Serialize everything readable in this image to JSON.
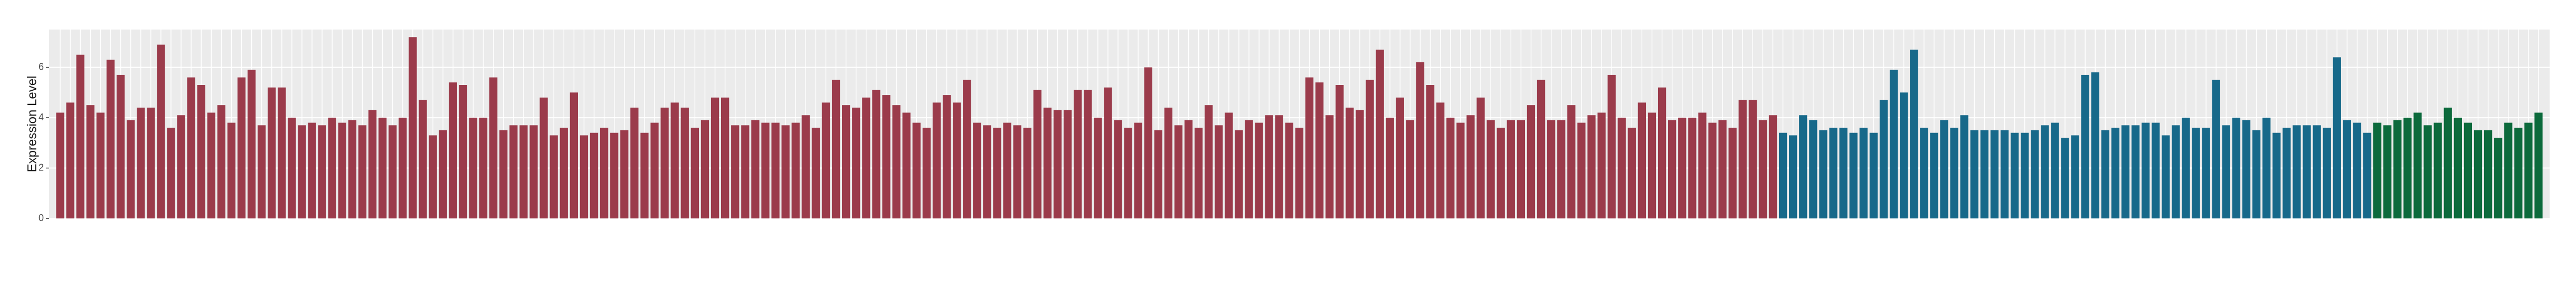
{
  "chart_data": {
    "type": "bar",
    "ylabel": "Expression Level",
    "ylim": [
      0,
      7.5
    ],
    "yticks": [
      0,
      2,
      4,
      6
    ],
    "grid": true,
    "series": [
      {
        "color": "#9b3b4b",
        "values": [
          4.2,
          4.6,
          6.5,
          4.5,
          4.2,
          6.3,
          5.7,
          3.9,
          4.4,
          4.4,
          6.9,
          3.6,
          4.1,
          5.6,
          5.3,
          4.2,
          4.5,
          3.8,
          5.6,
          5.9,
          3.7,
          5.2,
          5.2,
          4.0,
          3.7,
          3.8,
          3.7,
          4.0,
          3.8,
          3.9,
          3.7,
          4.3,
          4.0,
          3.7,
          4.0,
          7.2,
          4.7,
          3.3,
          3.5,
          5.4,
          5.3,
          4.0,
          4.0,
          5.6,
          3.5,
          3.7,
          3.7,
          3.7,
          4.8,
          3.3,
          3.6,
          5.0,
          3.3,
          3.4,
          3.6,
          3.4,
          3.5,
          4.4,
          3.4,
          3.8,
          4.4,
          4.6,
          4.4,
          3.6,
          3.9,
          4.8,
          4.8,
          3.7,
          3.7,
          3.9,
          3.8,
          3.8,
          3.7,
          3.8,
          4.1,
          3.6,
          4.6,
          5.5,
          4.5,
          4.4,
          4.8,
          5.1,
          4.9,
          4.5,
          4.2,
          3.8,
          3.6,
          4.6,
          4.9,
          4.6,
          5.5,
          3.8,
          3.7,
          3.6,
          3.8,
          3.7,
          3.6,
          5.1,
          4.4,
          4.3,
          4.3,
          5.1,
          5.1,
          4.0,
          5.2,
          3.9,
          3.6,
          3.8,
          6.0,
          3.5,
          4.4,
          3.7,
          3.9,
          3.6,
          4.5,
          3.7,
          4.2,
          3.5,
          3.9,
          3.8,
          4.1,
          4.1,
          3.8,
          3.6,
          5.6,
          5.4,
          4.1,
          5.3,
          4.4,
          4.3,
          5.5,
          6.7,
          4.0,
          4.8,
          3.9,
          6.2,
          5.3,
          4.6,
          4.0,
          3.8,
          4.1,
          4.8,
          3.9,
          3.6,
          3.9,
          3.9,
          4.5,
          5.5,
          3.9,
          3.9,
          4.5,
          3.8,
          4.1,
          4.2,
          5.7,
          4.0,
          3.6,
          4.6,
          4.2,
          5.2,
          3.9,
          4.0,
          4.0,
          4.2,
          3.8,
          3.9,
          3.6,
          4.7,
          4.7,
          3.9,
          4.1
        ]
      },
      {
        "color": "#17698a",
        "values": [
          3.4,
          3.3,
          4.1,
          3.9,
          3.5,
          3.6,
          3.6,
          3.4,
          3.6,
          3.4,
          4.7,
          5.9,
          5.0,
          6.7,
          3.6,
          3.4,
          3.9,
          3.6,
          4.1,
          3.5,
          3.5,
          3.5,
          3.5,
          3.4,
          3.4,
          3.5,
          3.7,
          3.8,
          3.2,
          3.3,
          5.7,
          5.8,
          3.5,
          3.6,
          3.7,
          3.7,
          3.8,
          3.8,
          3.3,
          3.7,
          4.0,
          3.6,
          3.6,
          5.5,
          3.7,
          4.0,
          3.9,
          3.5,
          4.0,
          3.4,
          3.6,
          3.7,
          3.7,
          3.7,
          3.6,
          6.4,
          3.9,
          3.8,
          3.4
        ]
      },
      {
        "color": "#0c6a3c",
        "values": [
          3.8,
          3.7,
          3.9,
          4.0,
          4.2,
          3.7,
          3.8,
          4.4,
          4.0,
          3.8,
          3.5,
          3.5,
          3.2,
          3.8,
          3.6,
          3.8,
          4.2
        ]
      }
    ]
  }
}
